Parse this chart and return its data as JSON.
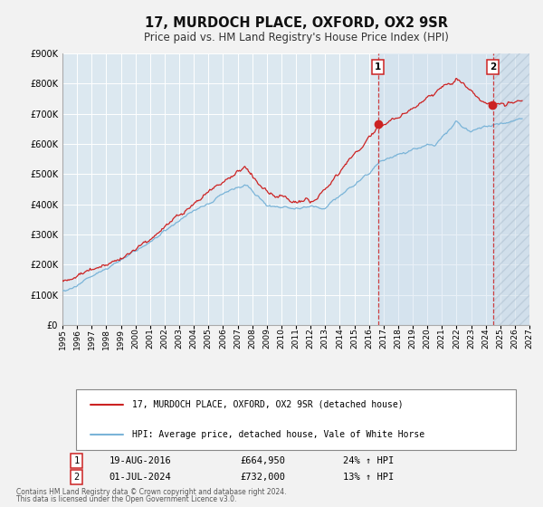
{
  "title": "17, MURDOCH PLACE, OXFORD, OX2 9SR",
  "subtitle": "Price paid vs. HM Land Registry's House Price Index (HPI)",
  "ylim": [
    0,
    900000
  ],
  "xlim_start": 1995.0,
  "xlim_end": 2027.0,
  "yticks": [
    0,
    100000,
    200000,
    300000,
    400000,
    500000,
    600000,
    700000,
    800000,
    900000
  ],
  "ytick_labels": [
    "£0",
    "£100K",
    "£200K",
    "£300K",
    "£400K",
    "£500K",
    "£600K",
    "£700K",
    "£800K",
    "£900K"
  ],
  "xticks": [
    1995,
    1996,
    1997,
    1998,
    1999,
    2000,
    2001,
    2002,
    2003,
    2004,
    2005,
    2006,
    2007,
    2008,
    2009,
    2010,
    2011,
    2012,
    2013,
    2014,
    2015,
    2016,
    2017,
    2018,
    2019,
    2020,
    2021,
    2022,
    2023,
    2024,
    2025,
    2026,
    2027
  ],
  "hpi_color": "#7ab4d8",
  "price_color": "#cc2222",
  "marker1_date": 2016.63,
  "marker1_price": 664950,
  "marker2_date": 2024.5,
  "marker2_price": 732000,
  "marker1_date_str": "19-AUG-2016",
  "marker1_price_str": "£664,950",
  "marker1_pct": "24% ↑ HPI",
  "marker2_date_str": "01-JUL-2024",
  "marker2_price_str": "£732,000",
  "marker2_pct": "13% ↑ HPI",
  "legend_line1": "17, MURDOCH PLACE, OXFORD, OX2 9SR (detached house)",
  "legend_line2": "HPI: Average price, detached house, Vale of White Horse",
  "footer1": "Contains HM Land Registry data © Crown copyright and database right 2024.",
  "footer2": "This data is licensed under the Open Government Licence v3.0.",
  "bg_color": "#f2f2f2",
  "plot_bg_color": "#dce8f0",
  "grid_color": "#ffffff"
}
